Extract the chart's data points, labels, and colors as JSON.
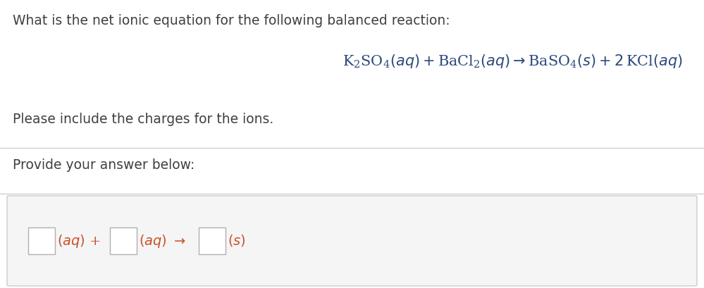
{
  "bg_color": "#ffffff",
  "dark_color": "#404040",
  "eq_color": "#2c4a7c",
  "answer_text_color": "#c8522a",
  "question_text": "What is the net ionic equation for the following balanced reaction:",
  "please_text": "Please include the charges for the ions.",
  "provide_text": "Provide your answer below:",
  "fig_width": 9.99,
  "fig_height": 4.09,
  "dpi": 100,
  "line_color": "#d0d0d0",
  "box_edge_color": "#b0b0b0",
  "answer_bg": "#f5f5f5",
  "answer_bg_edge": "#cccccc"
}
